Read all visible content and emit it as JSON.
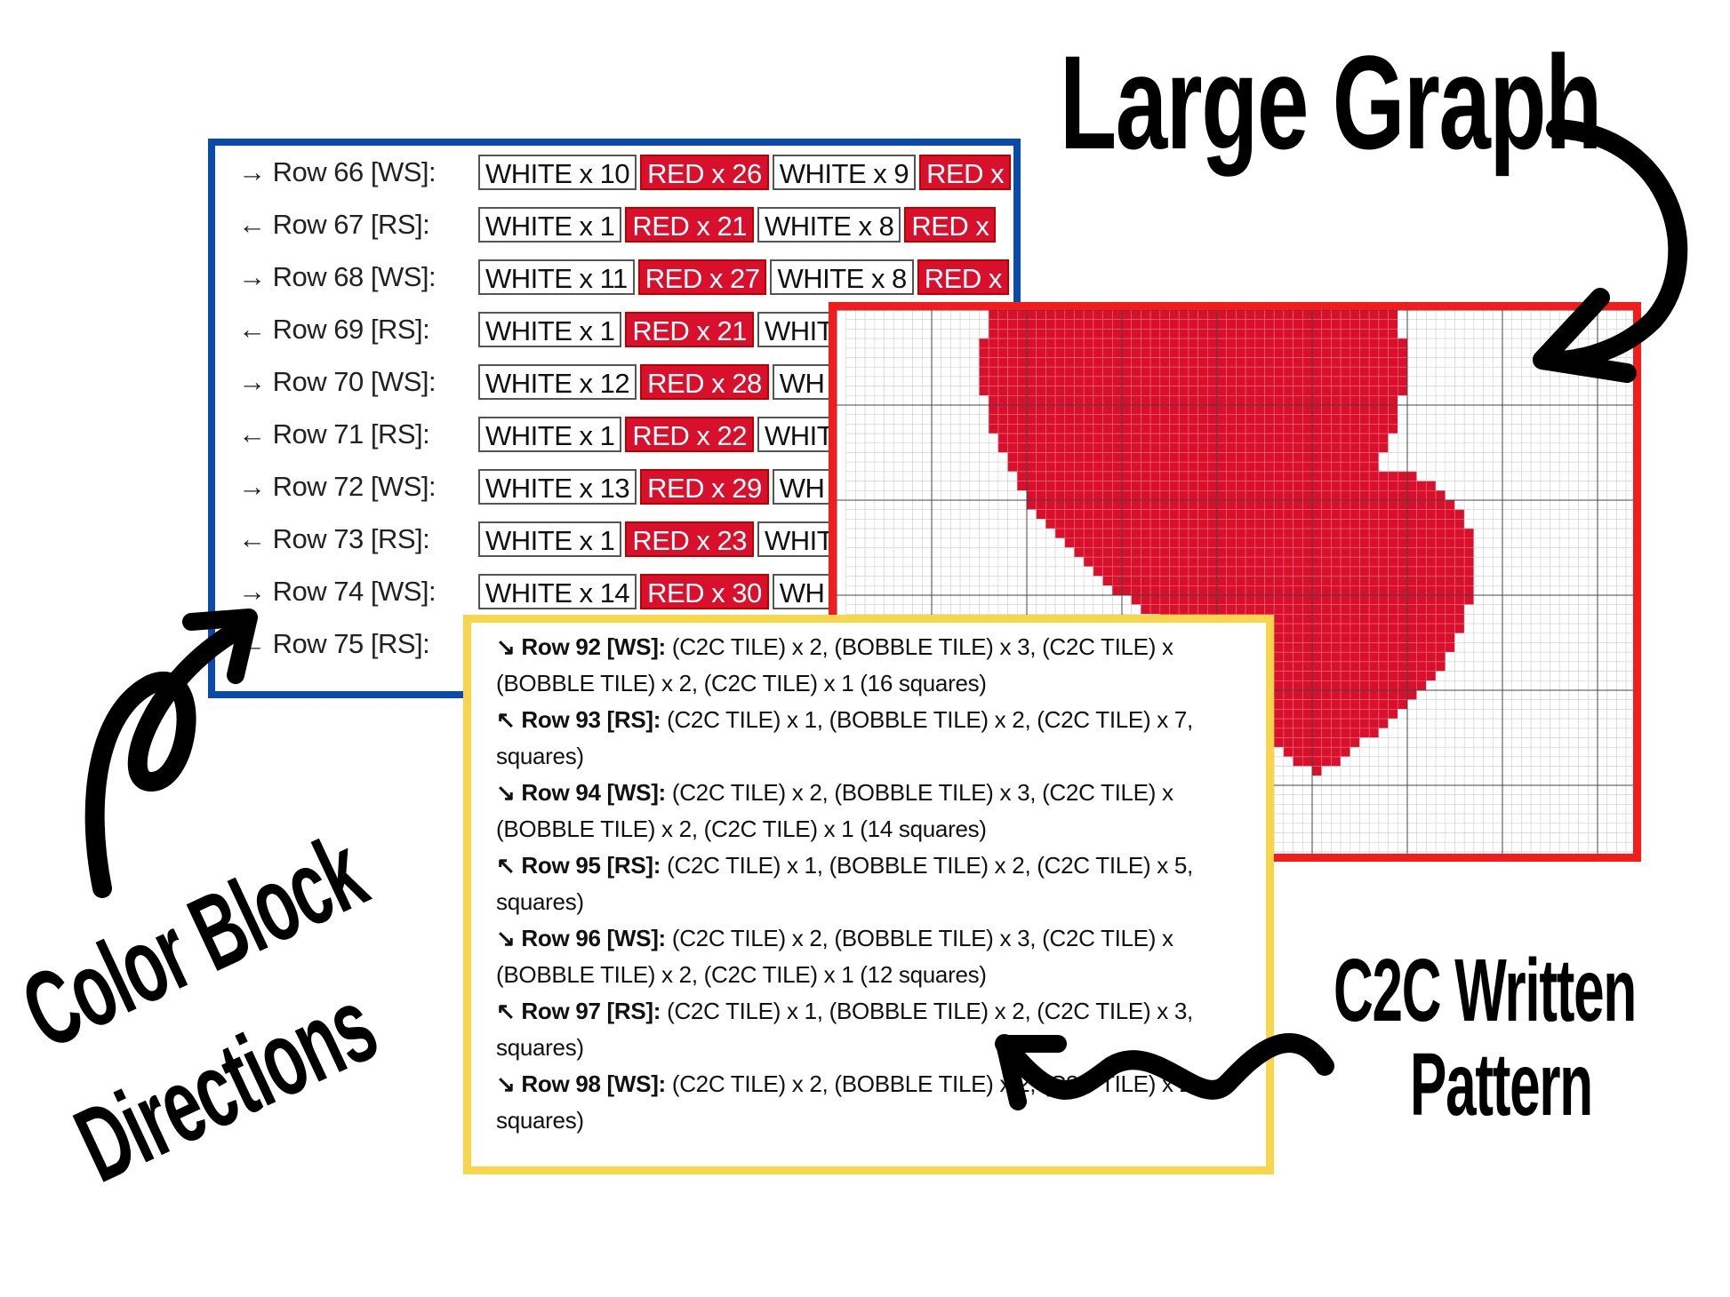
{
  "colors": {
    "blue_frame": "#0b4aa8",
    "red_frame": "#f21c1c",
    "yellow_frame": "#f7d54d",
    "stitch_red": "#d9102c"
  },
  "labels": {
    "large_graph": "Large Graph",
    "color_block_line1": "Color Block",
    "color_block_line2": "Directions",
    "c2c_line1": "C2C Written",
    "c2c_line2": "Pattern"
  },
  "color_block": {
    "rows": [
      {
        "label": "→ Row 66 [WS]:",
        "cells": [
          {
            "t": "WHITE x 10",
            "c": "w"
          },
          {
            "t": "RED x 26",
            "c": "r"
          },
          {
            "t": "WHITE x 9",
            "c": "w"
          },
          {
            "t": "RED x",
            "c": "r"
          }
        ]
      },
      {
        "label": "← Row 67 [RS]:",
        "cells": [
          {
            "t": "WHITE x 1",
            "c": "w"
          },
          {
            "t": "RED x 21",
            "c": "r"
          },
          {
            "t": "WHITE x 8",
            "c": "w"
          },
          {
            "t": "RED x",
            "c": "r"
          }
        ]
      },
      {
        "label": "→ Row 68 [WS]:",
        "cells": [
          {
            "t": "WHITE x 11",
            "c": "w"
          },
          {
            "t": "RED x 27",
            "c": "r"
          },
          {
            "t": "WHITE x 8",
            "c": "w"
          },
          {
            "t": "RED x",
            "c": "r"
          }
        ]
      },
      {
        "label": "← Row 69 [RS]:",
        "cells": [
          {
            "t": "WHITE x 1",
            "c": "w"
          },
          {
            "t": "RED x 21",
            "c": "r"
          },
          {
            "t": "WHIT",
            "c": "w"
          }
        ]
      },
      {
        "label": "→ Row 70 [WS]:",
        "cells": [
          {
            "t": "WHITE x 12",
            "c": "w"
          },
          {
            "t": "RED x 28",
            "c": "r"
          },
          {
            "t": "WH",
            "c": "w"
          }
        ]
      },
      {
        "label": "← Row 71 [RS]:",
        "cells": [
          {
            "t": "WHITE x 1",
            "c": "w"
          },
          {
            "t": "RED x 22",
            "c": "r"
          },
          {
            "t": "WHIT",
            "c": "w"
          }
        ]
      },
      {
        "label": "→ Row 72 [WS]:",
        "cells": [
          {
            "t": "WHITE x 13",
            "c": "w"
          },
          {
            "t": "RED x 29",
            "c": "r"
          },
          {
            "t": "WH",
            "c": "w"
          }
        ]
      },
      {
        "label": "← Row 73 [RS]:",
        "cells": [
          {
            "t": "WHITE x 1",
            "c": "w"
          },
          {
            "t": "RED x 23",
            "c": "r"
          },
          {
            "t": "WHIT",
            "c": "w"
          }
        ]
      },
      {
        "label": "→ Row 74 [WS]:",
        "cells": [
          {
            "t": "WHITE x 14",
            "c": "w"
          },
          {
            "t": "RED x 30",
            "c": "r"
          },
          {
            "t": "WH",
            "c": "w"
          }
        ]
      },
      {
        "label": "← Row 75 [RS]:",
        "cells": []
      }
    ]
  },
  "c2c": {
    "lines": [
      {
        "bold": "↘ Row 92 [WS]:",
        "text": " (C2C TILE) x 2, (BOBBLE TILE) x 3, (C2C TILE) x"
      },
      {
        "bold": "",
        "text": "(BOBBLE TILE) x 2, (C2C TILE) x 1 (16 squares)"
      },
      {
        "bold": "↖ Row 93 [RS]:",
        "text": " (C2C TILE) x 1, (BOBBLE TILE) x 2, (C2C TILE) x 7,"
      },
      {
        "bold": "",
        "text": "squares)"
      },
      {
        "bold": "↘ Row 94 [WS]:",
        "text": " (C2C TILE) x 2, (BOBBLE TILE) x 3, (C2C TILE) x"
      },
      {
        "bold": "",
        "text": "(BOBBLE TILE) x 2, (C2C TILE) x 1 (14 squares)"
      },
      {
        "bold": "↖ Row 95 [RS]:",
        "text": " (C2C TILE) x 1, (BOBBLE TILE) x 2, (C2C TILE) x 5,"
      },
      {
        "bold": "",
        "text": "squares)"
      },
      {
        "bold": "↘ Row 96 [WS]:",
        "text": " (C2C TILE) x 2, (BOBBLE TILE) x 3, (C2C TILE) x"
      },
      {
        "bold": "",
        "text": "(BOBBLE TILE) x 2, (C2C TILE) x 1 (12 squares)"
      },
      {
        "bold": "↖ Row 97 [RS]:",
        "text": " (C2C TILE) x 1, (BOBBLE TILE) x 2, (C2C TILE) x 3,"
      },
      {
        "bold": "",
        "text": "squares)"
      },
      {
        "bold": "↘ Row 98 [WS]:",
        "text": " (C2C TILE) x 2, (BOBBLE TILE) x 2, (C2C TILE) x 2,"
      },
      {
        "bold": "",
        "text": "squares)"
      }
    ]
  }
}
